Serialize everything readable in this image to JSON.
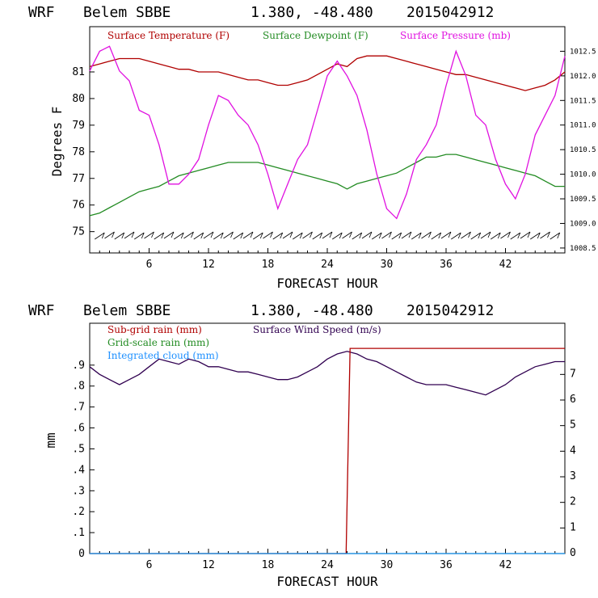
{
  "chart_data": [
    {
      "type": "line",
      "header": {
        "model": "WRF",
        "station": "Belem SBBE",
        "coords": "1.380, -48.480",
        "run": "2015042912"
      },
      "xlabel": "FORECAST HOUR",
      "ylabel": "Degrees F",
      "xlim": [
        0,
        48
      ],
      "ylim": [
        74.2,
        82.7
      ],
      "x_ticks": [
        "6",
        "12",
        "18",
        "24",
        "30",
        "36",
        "42"
      ],
      "y_ticks": [
        "75",
        "76",
        "77",
        "78",
        "79",
        "80",
        "81"
      ],
      "y2lim": [
        1008.4,
        1013.0
      ],
      "y2_ticks": [
        "1008.5",
        "1009.0",
        "1009.5",
        "1010.0",
        "1010.5",
        "1011.0",
        "1011.5",
        "1012.0",
        "1012.5"
      ],
      "legend": [
        {
          "label": "Surface Temperature (F)",
          "color": "#b00000"
        },
        {
          "label": "Surface Dewpoint (F)",
          "color": "#228b22"
        },
        {
          "label": "Surface Pressure (mb)",
          "color": "#e010e0"
        }
      ],
      "series": [
        {
          "name": "Surface Temperature (F)",
          "axis": "left",
          "color": "#b00000",
          "x": [
            0,
            1,
            2,
            3,
            4,
            5,
            6,
            7,
            8,
            9,
            10,
            11,
            12,
            13,
            14,
            15,
            16,
            17,
            18,
            19,
            20,
            21,
            22,
            23,
            24,
            25,
            26,
            27,
            28,
            29,
            30,
            31,
            32,
            33,
            34,
            35,
            36,
            37,
            38,
            39,
            40,
            41,
            42,
            43,
            44,
            45,
            46,
            47,
            48
          ],
          "values": [
            81.2,
            81.3,
            81.4,
            81.5,
            81.5,
            81.5,
            81.4,
            81.3,
            81.2,
            81.1,
            81.1,
            81.0,
            81.0,
            81.0,
            80.9,
            80.8,
            80.7,
            80.7,
            80.6,
            80.5,
            80.5,
            80.6,
            80.7,
            80.9,
            81.1,
            81.3,
            81.2,
            81.5,
            81.6,
            81.6,
            81.6,
            81.5,
            81.4,
            81.3,
            81.2,
            81.1,
            81.0,
            80.9,
            80.9,
            80.8,
            80.7,
            80.6,
            80.5,
            80.4,
            80.3,
            80.4,
            80.5,
            80.7,
            81.0
          ]
        },
        {
          "name": "Surface Dewpoint (F)",
          "axis": "left",
          "color": "#228b22",
          "x": [
            0,
            1,
            2,
            3,
            4,
            5,
            6,
            7,
            8,
            9,
            10,
            11,
            12,
            13,
            14,
            15,
            16,
            17,
            18,
            19,
            20,
            21,
            22,
            23,
            24,
            25,
            26,
            27,
            28,
            29,
            30,
            31,
            32,
            33,
            34,
            35,
            36,
            37,
            38,
            39,
            40,
            41,
            42,
            43,
            44,
            45,
            46,
            47,
            48
          ],
          "values": [
            75.6,
            75.7,
            75.9,
            76.1,
            76.3,
            76.5,
            76.6,
            76.7,
            76.9,
            77.1,
            77.2,
            77.3,
            77.4,
            77.5,
            77.6,
            77.6,
            77.6,
            77.6,
            77.5,
            77.4,
            77.3,
            77.2,
            77.1,
            77.0,
            76.9,
            76.8,
            76.6,
            76.8,
            76.9,
            77.0,
            77.1,
            77.2,
            77.4,
            77.6,
            77.8,
            77.8,
            77.9,
            77.9,
            77.8,
            77.7,
            77.6,
            77.5,
            77.4,
            77.3,
            77.2,
            77.1,
            76.9,
            76.7,
            76.7
          ]
        },
        {
          "name": "Surface Pressure (mb)",
          "axis": "right",
          "color": "#e010e0",
          "x": [
            0,
            1,
            2,
            3,
            4,
            5,
            6,
            7,
            8,
            9,
            10,
            11,
            12,
            13,
            14,
            15,
            16,
            17,
            18,
            19,
            20,
            21,
            22,
            23,
            24,
            25,
            26,
            27,
            28,
            29,
            30,
            31,
            32,
            33,
            34,
            35,
            36,
            37,
            38,
            39,
            40,
            41,
            42,
            43,
            44,
            45,
            46,
            47,
            48
          ],
          "values": [
            1012.1,
            1012.5,
            1012.6,
            1012.1,
            1011.9,
            1011.3,
            1011.2,
            1010.6,
            1009.8,
            1009.8,
            1010.0,
            1010.3,
            1011.0,
            1011.6,
            1011.5,
            1011.2,
            1011.0,
            1010.6,
            1010.0,
            1009.3,
            1009.8,
            1010.3,
            1010.6,
            1011.3,
            1012.0,
            1012.3,
            1012.0,
            1011.6,
            1010.9,
            1010.0,
            1009.3,
            1009.1,
            1009.6,
            1010.3,
            1010.6,
            1011.0,
            1011.8,
            1012.5,
            1012.0,
            1011.2,
            1011.0,
            1010.3,
            1009.8,
            1009.5,
            1010.0,
            1010.8,
            1011.2,
            1011.6,
            1012.4
          ]
        }
      ],
      "wind_barbs": "row of wind barbs along bottom of panel"
    },
    {
      "type": "line",
      "header": {
        "model": "WRF",
        "station": "Belem SBBE",
        "coords": "1.380, -48.480",
        "run": "2015042912"
      },
      "xlabel": "FORECAST HOUR",
      "ylabel": "mm",
      "xlim": [
        0,
        48
      ],
      "ylim": [
        0,
        1.1
      ],
      "x_ticks": [
        "6",
        "12",
        "18",
        "24",
        "30",
        "36",
        "42"
      ],
      "y_ticks": [
        "0",
        ".1",
        ".2",
        ".3",
        ".4",
        ".5",
        ".6",
        ".7",
        ".8",
        ".9"
      ],
      "y2lim": [
        0,
        9
      ],
      "y2_ticks": [
        "0",
        "1",
        "2",
        "3",
        "4",
        "5",
        "6",
        "7"
      ],
      "legend": [
        {
          "label": "Sub-grid rain (mm)",
          "color": "#b00000"
        },
        {
          "label": "Surface Wind Speed (m/s)",
          "color": "#300050"
        },
        {
          "label": "Grid-scale rain (mm)",
          "color": "#228b22"
        },
        {
          "label": "Integrated cloud (mm)",
          "color": "#1e90ff"
        }
      ],
      "series": [
        {
          "name": "Surface Wind Speed (m/s)",
          "axis": "right",
          "color": "#300050",
          "x": [
            0,
            1,
            2,
            3,
            4,
            5,
            6,
            7,
            8,
            9,
            10,
            11,
            12,
            13,
            14,
            15,
            16,
            17,
            18,
            19,
            20,
            21,
            22,
            23,
            24,
            25,
            26,
            27,
            28,
            29,
            30,
            31,
            32,
            33,
            34,
            35,
            36,
            37,
            38,
            39,
            40,
            41,
            42,
            43,
            44,
            45,
            46,
            47,
            48
          ],
          "values": [
            7.3,
            7.0,
            6.8,
            6.6,
            6.8,
            7.0,
            7.3,
            7.6,
            7.5,
            7.4,
            7.6,
            7.5,
            7.3,
            7.3,
            7.2,
            7.1,
            7.1,
            7.0,
            6.9,
            6.8,
            6.8,
            6.9,
            7.1,
            7.3,
            7.6,
            7.8,
            7.9,
            7.8,
            7.6,
            7.5,
            7.3,
            7.1,
            6.9,
            6.7,
            6.6,
            6.6,
            6.6,
            6.5,
            6.4,
            6.3,
            6.2,
            6.4,
            6.6,
            6.9,
            7.1,
            7.3,
            7.4,
            7.5,
            7.5
          ]
        },
        {
          "name": "Sub-grid rain (mm)",
          "axis": "left",
          "color": "#b00000",
          "x": [
            0,
            25.9,
            26.3,
            48
          ],
          "values": [
            0,
            0,
            0.98,
            0.98
          ]
        },
        {
          "name": "Grid-scale rain (mm)",
          "axis": "left",
          "color": "#228b22",
          "x": [
            0,
            48
          ],
          "values": [
            0,
            0
          ]
        },
        {
          "name": "Integrated cloud (mm)",
          "axis": "left",
          "color": "#1e90ff",
          "x": [
            0,
            48
          ],
          "values": [
            0,
            0
          ]
        }
      ]
    }
  ]
}
